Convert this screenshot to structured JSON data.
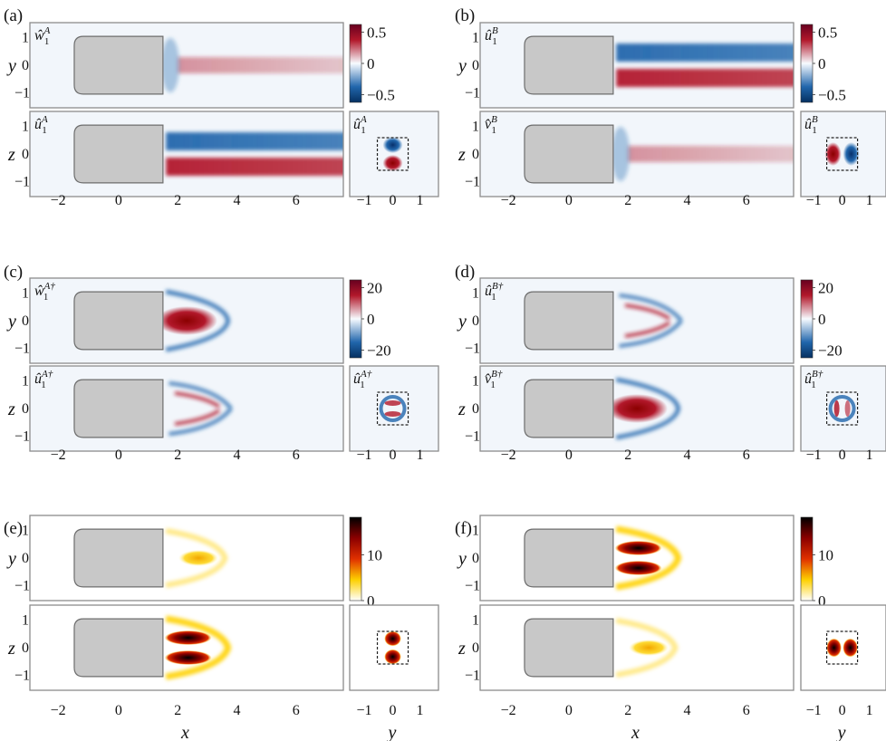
{
  "figure": {
    "panels": [
      {
        "id": "a",
        "label": "(a)",
        "kind": "mode",
        "field_scale": 1,
        "cbar_ticks": [
          "0.5",
          "0",
          "−0.5"
        ],
        "top": {
          "comp": "w",
          "sup": "A",
          "pattern": "centerStreak"
        },
        "bottom": {
          "comp": "u",
          "sup": "A",
          "pattern": "dipoleZ"
        },
        "inset": {
          "comp": "u",
          "sup": "A",
          "pattern": "dipoleZ"
        },
        "show_x_ticks": true
      },
      {
        "id": "b",
        "label": "(b)",
        "kind": "mode",
        "field_scale": 1,
        "cbar_ticks": [
          "0.5",
          "0",
          "−0.5"
        ],
        "top": {
          "comp": "u",
          "sup": "B",
          "pattern": "dipoleZ"
        },
        "bottom": {
          "comp": "v",
          "sup": "B",
          "pattern": "centerStreak"
        },
        "inset": {
          "comp": "u",
          "sup": "B",
          "pattern": "dipoleY"
        },
        "show_x_ticks": true
      },
      {
        "id": "c",
        "label": "(c)",
        "kind": "adjoint",
        "field_scale": 20,
        "cbar_ticks": [
          "20",
          "0",
          "−20"
        ],
        "top": {
          "comp": "w",
          "sup": "A†",
          "pattern": "adjCenter"
        },
        "bottom": {
          "comp": "u",
          "sup": "A†",
          "pattern": "adjArc"
        },
        "inset": {
          "comp": "u",
          "sup": "A†",
          "pattern": "ringZ"
        },
        "show_x_ticks": true
      },
      {
        "id": "d",
        "label": "(d)",
        "kind": "adjoint",
        "field_scale": 20,
        "cbar_ticks": [
          "20",
          "0",
          "−20"
        ],
        "top": {
          "comp": "u",
          "sup": "B†",
          "pattern": "adjArc"
        },
        "bottom": {
          "comp": "v",
          "sup": "B†",
          "pattern": "adjCenter"
        },
        "inset": {
          "comp": "u",
          "sup": "B†",
          "pattern": "ringY"
        },
        "show_x_ticks": true
      },
      {
        "id": "e",
        "label": "(e)",
        "kind": "sensitivity",
        "field_scale": 18,
        "cbar_ticks": [
          "10",
          "0"
        ],
        "top": {
          "comp": "",
          "sup": "",
          "pattern": "sensWeak"
        },
        "bottom": {
          "comp": "",
          "sup": "",
          "pattern": "sensStrong"
        },
        "inset": {
          "comp": "",
          "sup": "",
          "pattern": "sensDotsZ"
        },
        "show_x_ticks": true
      },
      {
        "id": "f",
        "label": "(f)",
        "kind": "sensitivity",
        "field_scale": 18,
        "cbar_ticks": [
          "10",
          "0"
        ],
        "top": {
          "comp": "",
          "sup": "",
          "pattern": "sensStrong"
        },
        "bottom": {
          "comp": "",
          "sup": "",
          "pattern": "sensWeak"
        },
        "inset": {
          "comp": "",
          "sup": "",
          "pattern": "sensDotsY"
        },
        "show_x_ticks": true
      }
    ],
    "y_axis_labels": {
      "top": "y",
      "bottom": "z"
    },
    "y_ticks": [
      "1",
      "0",
      "−1"
    ],
    "x_ticks": [
      "−2",
      "0",
      "2",
      "4",
      "6"
    ],
    "inset_x_ticks": [
      "−1",
      "0",
      "1"
    ],
    "x_axis_label": "x",
    "inset_axis_label": "y",
    "colors": {
      "diverging_neg": "#2166ac",
      "diverging_mid": "#f7fbff",
      "diverging_pos": "#b2182b",
      "heat_low": "#ffffff",
      "heat_mid": "#fdd000",
      "heat_high": "#000000",
      "body_fill": "#c8c8c8",
      "body_stroke": "#6e6e6e",
      "frame": "#8c8c8c"
    }
  }
}
